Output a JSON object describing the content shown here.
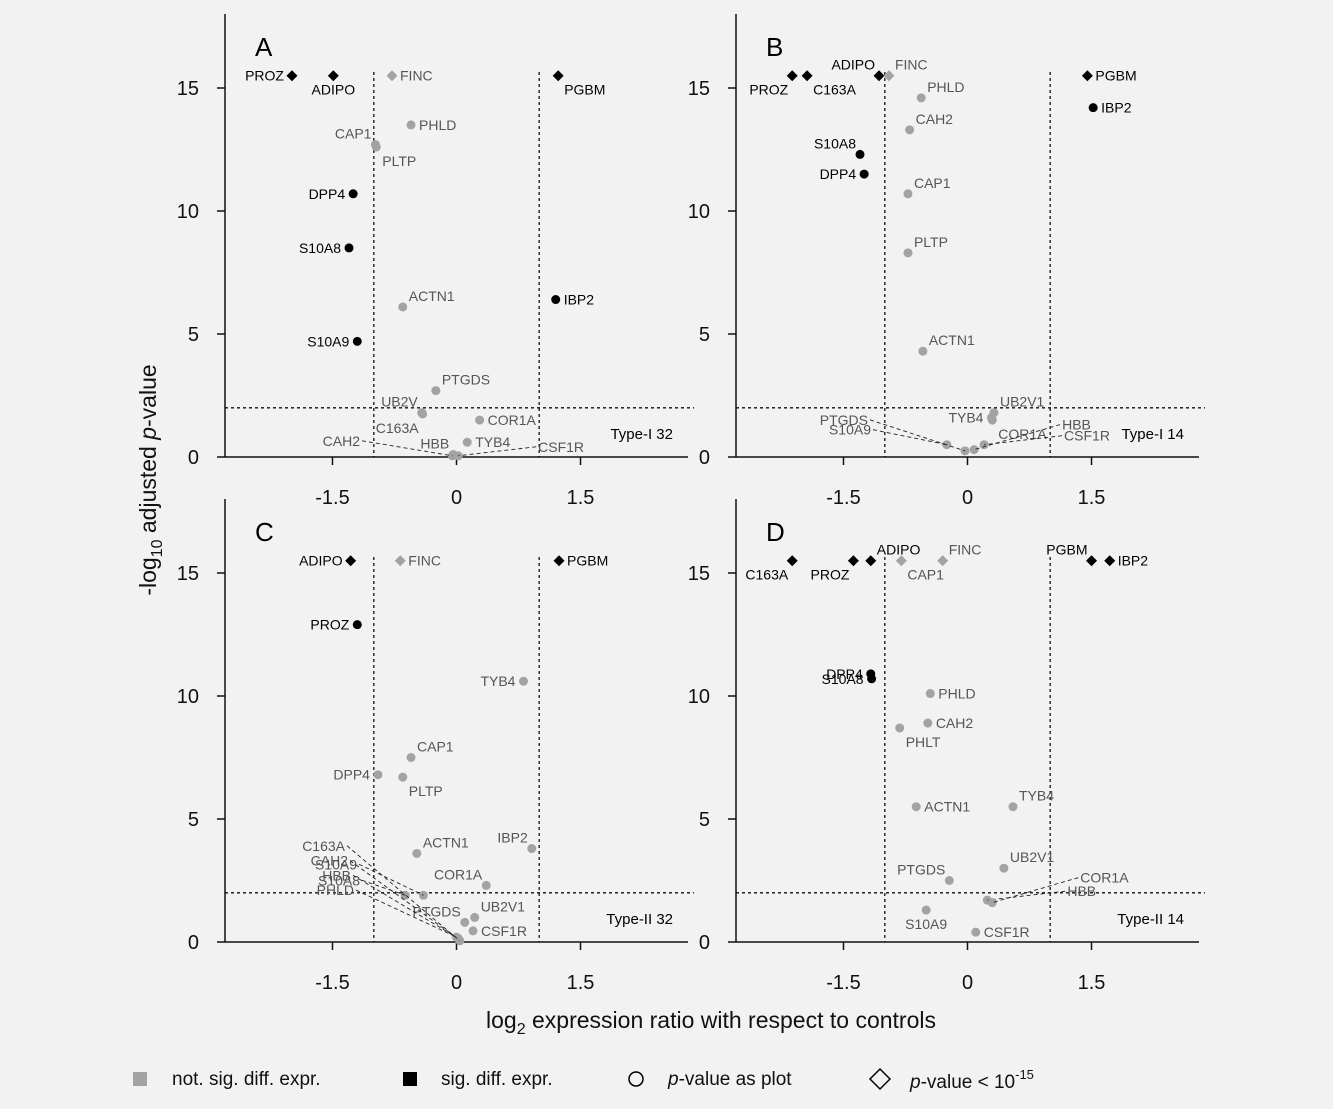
{
  "figure": {
    "y_axis_title": "-log10 adjusted p-value",
    "x_axis_title": "log2 expression ratio with respect to controls"
  },
  "legend": {
    "items": [
      {
        "symbol": "gray-square",
        "label": "not. sig. diff. expr."
      },
      {
        "symbol": "black-square",
        "label": "sig. diff. expr."
      },
      {
        "symbol": "open-circle",
        "label": "p-value as plot"
      },
      {
        "symbol": "open-diamond",
        "label": "p-value < 10^-15"
      }
    ],
    "colors": {
      "sig": "#000000",
      "notsig": "#a3a3a3"
    }
  },
  "chart_data": [
    {
      "type": "scatter",
      "panel": "A",
      "cohort": "Type-I 32",
      "xlim": [
        -2.8,
        2.8
      ],
      "ylim": [
        0,
        17.5
      ],
      "xticks": [
        -1.5,
        0,
        1.5
      ],
      "yticks": [
        0,
        5,
        10,
        15
      ],
      "thresholds": {
        "x": [
          -1,
          1
        ],
        "y": 2
      },
      "points": [
        {
          "gene": "PROZ",
          "x": -1.99,
          "y": 15.5,
          "sig": true,
          "shape": "diamond",
          "label_side": "left"
        },
        {
          "gene": "ADIPO",
          "x": -1.49,
          "y": 15.5,
          "sig": true,
          "shape": "diamond",
          "label_side": "below"
        },
        {
          "gene": "FINC",
          "x": -0.78,
          "y": 15.5,
          "sig": false,
          "shape": "diamond",
          "label_side": "right"
        },
        {
          "gene": "PGBM",
          "x": 1.23,
          "y": 15.5,
          "sig": true,
          "shape": "diamond",
          "label_side": "below-right"
        },
        {
          "gene": "PHLD",
          "x": -0.55,
          "y": 13.5,
          "sig": false,
          "shape": "circle",
          "label_side": "right"
        },
        {
          "gene": "CAP1",
          "x": -0.98,
          "y": 12.7,
          "sig": false,
          "shape": "circle",
          "label_side": "above-left"
        },
        {
          "gene": "PLTP",
          "x": -0.97,
          "y": 12.6,
          "sig": false,
          "shape": "circle",
          "label_side": "below-right"
        },
        {
          "gene": "DPP4",
          "x": -1.25,
          "y": 10.7,
          "sig": true,
          "shape": "circle",
          "label_side": "left"
        },
        {
          "gene": "S10A8",
          "x": -1.3,
          "y": 8.5,
          "sig": true,
          "shape": "circle",
          "label_side": "left"
        },
        {
          "gene": "ACTN1",
          "x": -0.65,
          "y": 6.1,
          "sig": false,
          "shape": "circle",
          "label_side": "above-right"
        },
        {
          "gene": "IBP2",
          "x": 1.2,
          "y": 6.4,
          "sig": true,
          "shape": "circle",
          "label_side": "right"
        },
        {
          "gene": "S10A9",
          "x": -1.2,
          "y": 4.7,
          "sig": true,
          "shape": "circle",
          "label_side": "left"
        },
        {
          "gene": "PTGDS",
          "x": -0.25,
          "y": 2.7,
          "sig": false,
          "shape": "circle",
          "label_side": "above-right"
        },
        {
          "gene": "UB2V",
          "x": -0.42,
          "y": 1.8,
          "sig": false,
          "shape": "circle",
          "label_side": "above-left"
        },
        {
          "gene": "C163A",
          "x": -0.41,
          "y": 1.75,
          "sig": false,
          "shape": "circle",
          "label_side": "below-left"
        },
        {
          "gene": "COR1A",
          "x": 0.28,
          "y": 1.5,
          "sig": false,
          "shape": "circle",
          "label_side": "right"
        },
        {
          "gene": "HBB",
          "x": -0.04,
          "y": 0.1,
          "sig": false,
          "shape": "circle",
          "label_side": "above-left"
        },
        {
          "gene": "TYB4",
          "x": 0.13,
          "y": 0.6,
          "sig": false,
          "shape": "circle",
          "label_side": "right"
        },
        {
          "gene": "CAH2",
          "x": -0.05,
          "y": 0.05,
          "sig": false,
          "shape": "circle",
          "label_side": "leader-left"
        },
        {
          "gene": "CSF1R",
          "x": 0.02,
          "y": 0.05,
          "sig": false,
          "shape": "circle",
          "label_side": "leader-right"
        }
      ]
    },
    {
      "type": "scatter",
      "panel": "B",
      "cohort": "Type-I 14",
      "xlim": [
        -2.8,
        2.8
      ],
      "ylim": [
        0,
        17.5
      ],
      "xticks": [
        -1.5,
        0,
        1.5
      ],
      "yticks": [
        0,
        5,
        10,
        15
      ],
      "thresholds": {
        "x": [
          -1,
          1
        ],
        "y": 2
      },
      "points": [
        {
          "gene": "PROZ",
          "x": -2.12,
          "y": 15.5,
          "sig": true,
          "shape": "diamond",
          "label_side": "below-left"
        },
        {
          "gene": "C163A",
          "x": -1.94,
          "y": 15.5,
          "sig": true,
          "shape": "diamond",
          "label_side": "below-right"
        },
        {
          "gene": "ADIPO",
          "x": -1.07,
          "y": 15.5,
          "sig": true,
          "shape": "diamond",
          "label_side": "above-left"
        },
        {
          "gene": "FINC",
          "x": -0.95,
          "y": 15.5,
          "sig": false,
          "shape": "diamond",
          "label_side": "above-right"
        },
        {
          "gene": "PGBM",
          "x": 1.45,
          "y": 15.5,
          "sig": true,
          "shape": "diamond",
          "label_side": "right"
        },
        {
          "gene": "IBP2",
          "x": 1.52,
          "y": 14.2,
          "sig": true,
          "shape": "circle",
          "label_side": "right"
        },
        {
          "gene": "PHLD",
          "x": -0.56,
          "y": 14.6,
          "sig": false,
          "shape": "circle",
          "label_side": "above-right"
        },
        {
          "gene": "CAH2",
          "x": -0.7,
          "y": 13.3,
          "sig": false,
          "shape": "circle",
          "label_side": "above-right"
        },
        {
          "gene": "S10A8",
          "x": -1.3,
          "y": 12.3,
          "sig": true,
          "shape": "circle",
          "label_side": "above-left"
        },
        {
          "gene": "DPP4",
          "x": -1.25,
          "y": 11.5,
          "sig": true,
          "shape": "circle",
          "label_side": "left"
        },
        {
          "gene": "CAP1",
          "x": -0.72,
          "y": 10.7,
          "sig": false,
          "shape": "circle",
          "label_side": "above-right"
        },
        {
          "gene": "PLTP",
          "x": -0.72,
          "y": 8.3,
          "sig": false,
          "shape": "circle",
          "label_side": "above-right"
        },
        {
          "gene": "ACTN1",
          "x": -0.54,
          "y": 4.3,
          "sig": false,
          "shape": "circle",
          "label_side": "above-right"
        },
        {
          "gene": "UB2V1",
          "x": 0.32,
          "y": 1.8,
          "sig": false,
          "shape": "circle",
          "label_side": "above-right"
        },
        {
          "gene": "TYB4",
          "x": 0.29,
          "y": 1.6,
          "sig": false,
          "shape": "circle",
          "label_side": "left"
        },
        {
          "gene": "COR1A",
          "x": 0.3,
          "y": 1.5,
          "sig": false,
          "shape": "circle",
          "label_side": "below-right"
        },
        {
          "gene": "S10A9",
          "x": -0.25,
          "y": 0.5,
          "sig": false,
          "shape": "circle",
          "label_side": "leader-left"
        },
        {
          "gene": "PTGDS",
          "x": -0.03,
          "y": 0.25,
          "sig": false,
          "shape": "circle",
          "label_side": "leader-left"
        },
        {
          "gene": "CSF1R",
          "x": 0.2,
          "y": 0.5,
          "sig": false,
          "shape": "circle",
          "label_side": "leader-right"
        },
        {
          "gene": "HBB",
          "x": 0.08,
          "y": 0.3,
          "sig": false,
          "shape": "circle",
          "label_side": "leader-right"
        }
      ]
    },
    {
      "type": "scatter",
      "panel": "C",
      "cohort": "Type-II 32",
      "xlim": [
        -2.8,
        2.8
      ],
      "ylim": [
        0,
        17.5
      ],
      "xticks": [
        -1.5,
        0,
        1.5
      ],
      "yticks": [
        0,
        5,
        10,
        15
      ],
      "thresholds": {
        "x": [
          -1,
          1
        ],
        "y": 2
      },
      "points": [
        {
          "gene": "ADIPO",
          "x": -1.28,
          "y": 15.5,
          "sig": true,
          "shape": "diamond",
          "label_side": "left"
        },
        {
          "gene": "FINC",
          "x": -0.68,
          "y": 15.5,
          "sig": false,
          "shape": "diamond",
          "label_side": "right"
        },
        {
          "gene": "PGBM",
          "x": 1.24,
          "y": 15.5,
          "sig": true,
          "shape": "diamond",
          "label_side": "right"
        },
        {
          "gene": "PROZ",
          "x": -1.2,
          "y": 12.9,
          "sig": true,
          "shape": "circle",
          "label_side": "left"
        },
        {
          "gene": "TYB4",
          "x": 0.81,
          "y": 10.6,
          "sig": false,
          "shape": "circle",
          "label_side": "left"
        },
        {
          "gene": "CAP1",
          "x": -0.55,
          "y": 7.5,
          "sig": false,
          "shape": "circle",
          "label_side": "above-right"
        },
        {
          "gene": "DPP4",
          "x": -0.95,
          "y": 6.8,
          "sig": false,
          "shape": "circle",
          "label_side": "left"
        },
        {
          "gene": "PLTP",
          "x": -0.65,
          "y": 6.7,
          "sig": false,
          "shape": "circle",
          "label_side": "below-right"
        },
        {
          "gene": "IBP2",
          "x": 0.91,
          "y": 3.8,
          "sig": false,
          "shape": "circle",
          "label_side": "above-left"
        },
        {
          "gene": "ACTN1",
          "x": -0.48,
          "y": 3.6,
          "sig": false,
          "shape": "circle",
          "label_side": "above-right"
        },
        {
          "gene": "COR1A",
          "x": 0.36,
          "y": 2.3,
          "sig": false,
          "shape": "circle",
          "label_side": "above-left"
        },
        {
          "gene": "S10A8",
          "x": -0.62,
          "y": 1.9,
          "sig": false,
          "shape": "circle",
          "label_side": "leader-left"
        },
        {
          "gene": "S10A9",
          "x": -0.4,
          "y": 1.9,
          "sig": false,
          "shape": "circle",
          "label_side": "leader-left"
        },
        {
          "gene": "PTGDS",
          "x": 0.1,
          "y": 0.8,
          "sig": false,
          "shape": "circle",
          "label_side": "above-left"
        },
        {
          "gene": "UB2V1",
          "x": 0.22,
          "y": 1.0,
          "sig": false,
          "shape": "circle",
          "label_side": "above-right"
        },
        {
          "gene": "CSF1R",
          "x": 0.2,
          "y": 0.45,
          "sig": false,
          "shape": "circle",
          "label_side": "right"
        },
        {
          "gene": "PHLD",
          "x": 0.0,
          "y": 0.2,
          "sig": false,
          "shape": "circle",
          "label_side": "leader-left"
        },
        {
          "gene": "HBB",
          "x": 0.02,
          "y": 0.15,
          "sig": false,
          "shape": "circle",
          "label_side": "leader-left"
        },
        {
          "gene": "CAH2",
          "x": 0.03,
          "y": 0.1,
          "sig": false,
          "shape": "circle",
          "label_side": "leader-left"
        },
        {
          "gene": "C163A",
          "x": 0.04,
          "y": 0.05,
          "sig": false,
          "shape": "circle",
          "label_side": "leader-left"
        }
      ]
    },
    {
      "type": "scatter",
      "panel": "D",
      "cohort": "Type-II 14",
      "xlim": [
        -2.8,
        2.8
      ],
      "ylim": [
        0,
        17.5
      ],
      "xticks": [
        -1.5,
        0,
        1.5
      ],
      "yticks": [
        0,
        5,
        10,
        15
      ],
      "thresholds": {
        "x": [
          -1,
          1
        ],
        "y": 2
      },
      "points": [
        {
          "gene": "C163A",
          "x": -2.12,
          "y": 15.5,
          "sig": true,
          "shape": "diamond",
          "label_side": "below-left"
        },
        {
          "gene": "PROZ",
          "x": -1.38,
          "y": 15.5,
          "sig": true,
          "shape": "diamond",
          "label_side": "below-left"
        },
        {
          "gene": "ADIPO",
          "x": -1.17,
          "y": 15.5,
          "sig": true,
          "shape": "diamond",
          "label_side": "above-right"
        },
        {
          "gene": "CAP1",
          "x": -0.8,
          "y": 15.5,
          "sig": false,
          "shape": "diamond",
          "label_side": "below-right"
        },
        {
          "gene": "FINC",
          "x": -0.3,
          "y": 15.5,
          "sig": false,
          "shape": "diamond",
          "label_side": "above-right"
        },
        {
          "gene": "PGBM",
          "x": 1.5,
          "y": 15.5,
          "sig": true,
          "shape": "diamond",
          "label_side": "above-left"
        },
        {
          "gene": "IBP2",
          "x": 1.72,
          "y": 15.5,
          "sig": true,
          "shape": "diamond",
          "label_side": "right"
        },
        {
          "gene": "DPP4",
          "x": -1.17,
          "y": 10.9,
          "sig": true,
          "shape": "circle",
          "label_side": "left"
        },
        {
          "gene": "S10A8",
          "x": -1.16,
          "y": 10.7,
          "sig": true,
          "shape": "circle",
          "label_side": "left"
        },
        {
          "gene": "PHLD",
          "x": -0.45,
          "y": 10.1,
          "sig": false,
          "shape": "circle",
          "label_side": "right"
        },
        {
          "gene": "CAH2",
          "x": -0.48,
          "y": 8.9,
          "sig": false,
          "shape": "circle",
          "label_side": "right"
        },
        {
          "gene": "PHLT",
          "x": -0.82,
          "y": 8.7,
          "sig": false,
          "shape": "circle",
          "label_side": "below-right"
        },
        {
          "gene": "ACTN1",
          "x": -0.62,
          "y": 5.5,
          "sig": false,
          "shape": "circle",
          "label_side": "right"
        },
        {
          "gene": "TYB4",
          "x": 0.55,
          "y": 5.5,
          "sig": false,
          "shape": "circle",
          "label_side": "above-right"
        },
        {
          "gene": "PTGDS",
          "x": -0.22,
          "y": 2.5,
          "sig": false,
          "shape": "circle",
          "label_side": "above-left"
        },
        {
          "gene": "UB2V1",
          "x": 0.44,
          "y": 3.0,
          "sig": false,
          "shape": "circle",
          "label_side": "above-right"
        },
        {
          "gene": "HBB",
          "x": 0.24,
          "y": 1.7,
          "sig": false,
          "shape": "circle",
          "label_side": "leader-right"
        },
        {
          "gene": "COR1A",
          "x": 0.3,
          "y": 1.6,
          "sig": false,
          "shape": "circle",
          "label_side": "leader-right"
        },
        {
          "gene": "S10A9",
          "x": -0.5,
          "y": 1.3,
          "sig": false,
          "shape": "circle",
          "label_side": "below"
        },
        {
          "gene": "CSF1R",
          "x": 0.1,
          "y": 0.4,
          "sig": false,
          "shape": "circle",
          "label_side": "right"
        }
      ]
    }
  ]
}
